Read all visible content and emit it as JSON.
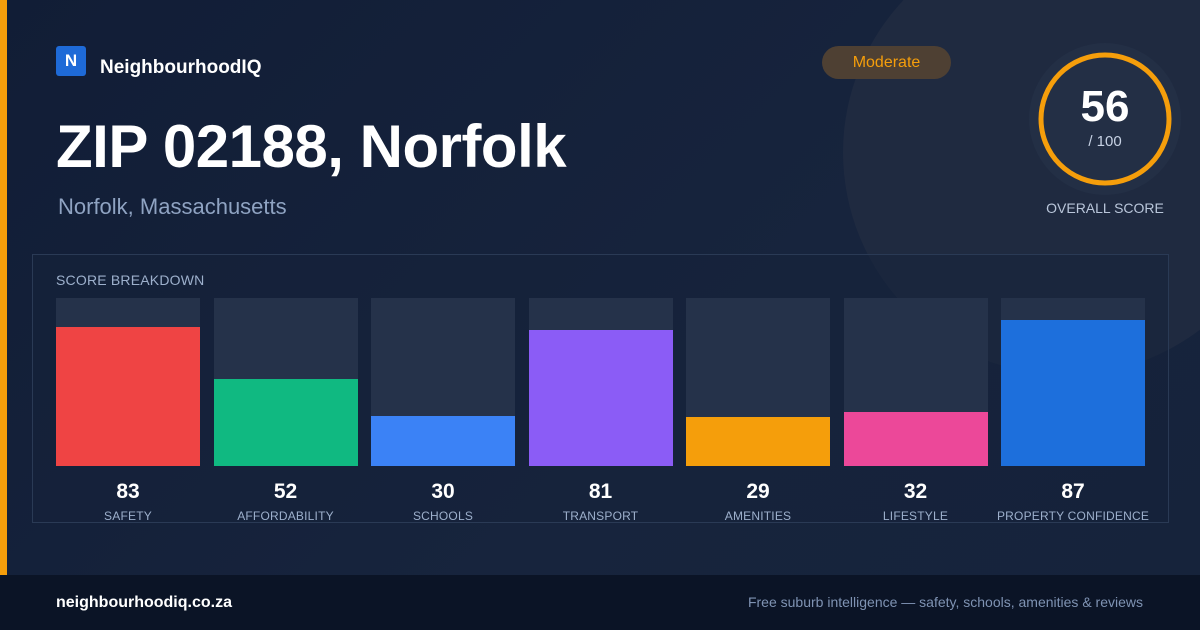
{
  "brand": {
    "logo_letter": "N",
    "name": "NeighbourhoodIQ"
  },
  "header": {
    "title": "ZIP 02188, Norfolk",
    "subtitle": "Norfolk, Massachusetts"
  },
  "rating": {
    "label": "Moderate"
  },
  "overall": {
    "score": 56,
    "score_text": "56",
    "max_text": "/ 100",
    "label": "OVERALL SCORE",
    "ring_color": "#f59e0b"
  },
  "breakdown": {
    "label": "SCORE BREAKDOWN"
  },
  "chart_data": {
    "type": "bar",
    "categories": [
      "SAFETY",
      "AFFORDABILITY",
      "SCHOOLS",
      "TRANSPORT",
      "AMENITIES",
      "LIFESTYLE",
      "PROPERTY CONFIDENCE"
    ],
    "values": [
      83,
      52,
      30,
      81,
      29,
      32,
      87
    ],
    "value_labels": [
      "83",
      "52",
      "30",
      "81",
      "29",
      "32",
      "87"
    ],
    "colors": [
      "#ef4444",
      "#10b981",
      "#3b82f6",
      "#8b5cf6",
      "#f59e0b",
      "#ec4899",
      "#1d6fdc"
    ],
    "title": "SCORE BREAKDOWN",
    "ylim": [
      0,
      100
    ],
    "grid": false
  },
  "footer": {
    "url": "neighbourhoodiq.co.za",
    "tagline": "Free suburb intelligence — safety, schools, amenities & reviews"
  }
}
